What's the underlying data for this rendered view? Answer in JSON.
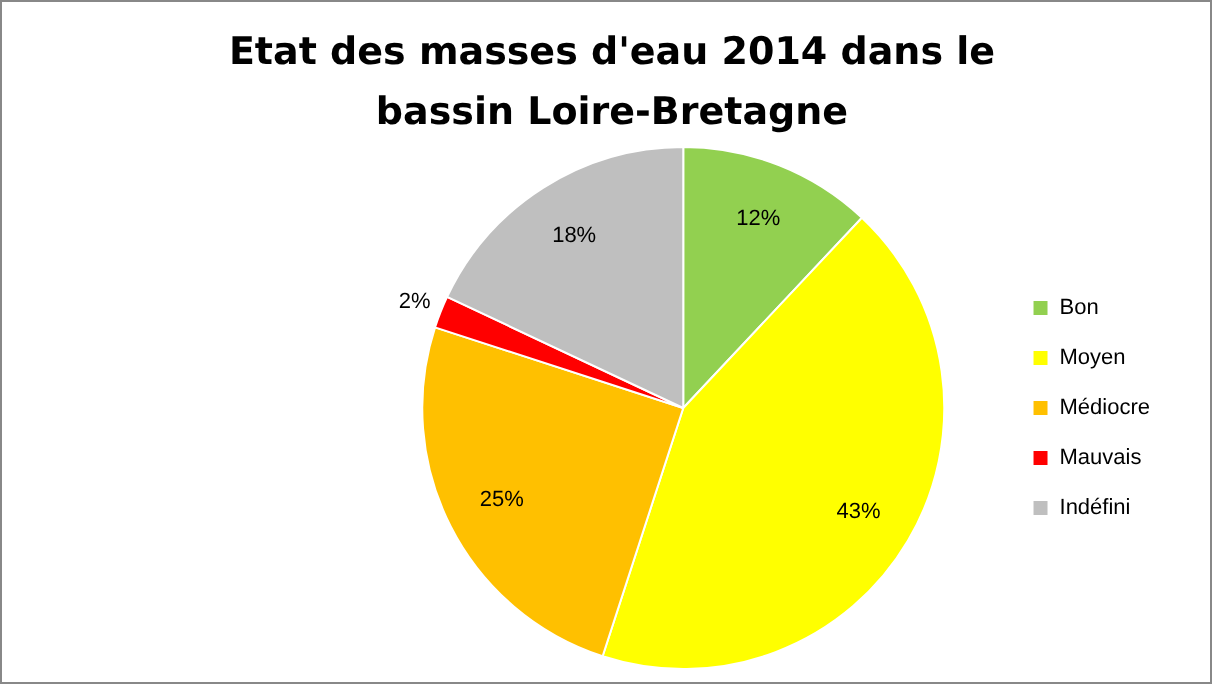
{
  "chart_data": {
    "type": "pie",
    "title": "Etat des masses d'eau 2014 dans le bassin Loire-Bretagne",
    "categories": [
      "Bon",
      "Moyen",
      "Médiocre",
      "Mauvais",
      "Indéfini"
    ],
    "values": [
      12,
      43,
      25,
      2,
      18
    ],
    "colors": [
      "#92d050",
      "#ffff00",
      "#ffc000",
      "#ff0000",
      "#bfbfbf"
    ],
    "value_labels": [
      "12%",
      "43%",
      "25%",
      "2%",
      "18%"
    ],
    "legend": "right"
  }
}
